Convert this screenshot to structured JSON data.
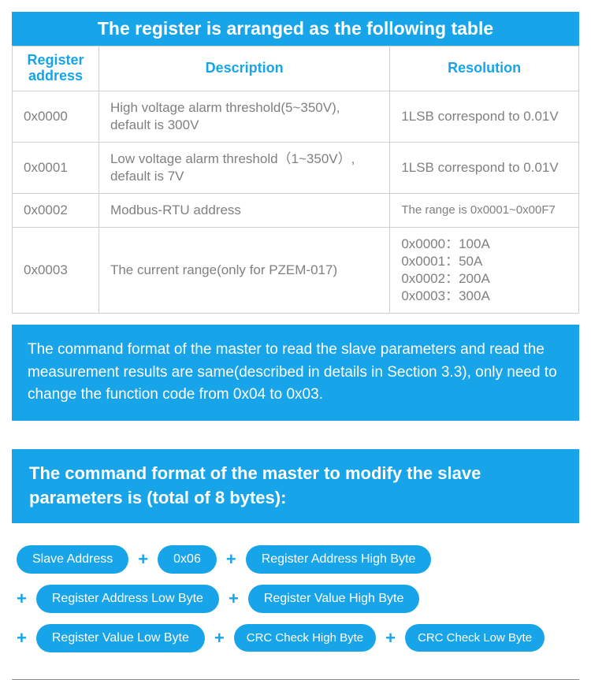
{
  "colors": {
    "primary": "#18a4e8",
    "text_muted": "#808080",
    "border": "#d0d0d0",
    "white": "#ffffff"
  },
  "table": {
    "title": "The register is arranged as the following table",
    "columns": [
      "Register address",
      "Description",
      "Resolution"
    ],
    "rows": [
      {
        "addr": "0x0000",
        "desc": "High voltage alarm threshold(5~350V), default is 300V",
        "res": "1LSB correspond to 0.01V"
      },
      {
        "addr": "0x0001",
        "desc": "Low voltage alarm threshold（1~350V）, default is 7V",
        "res": "1LSB correspond to 0.01V"
      },
      {
        "addr": "0x0002",
        "desc": "Modbus-RTU address",
        "res": "The range is 0x0001~0x00F7"
      },
      {
        "addr": "0x0003",
        "desc": "The current range(only for PZEM-017)",
        "res": "0x0000：100A\n0x0001：50A\n0x0002：200A\n0x0003：300A"
      }
    ]
  },
  "info_text": "The command format of the master to read the slave parameters and read the measurement results are same(described in details in Section 3.3), only need to change the function code from 0x04 to 0x03.",
  "section_title": "The command format of the master to modify the slave parameters is (total of 8 bytes):",
  "pills": {
    "row1": [
      "Slave Address",
      "0x06",
      "Register Address High Byte"
    ],
    "row2": [
      "Register Address Low Byte",
      "Register Value High Byte"
    ],
    "row3": [
      "Register Value Low Byte",
      "CRC Check High Byte",
      "CRC Check Low Byte"
    ]
  }
}
